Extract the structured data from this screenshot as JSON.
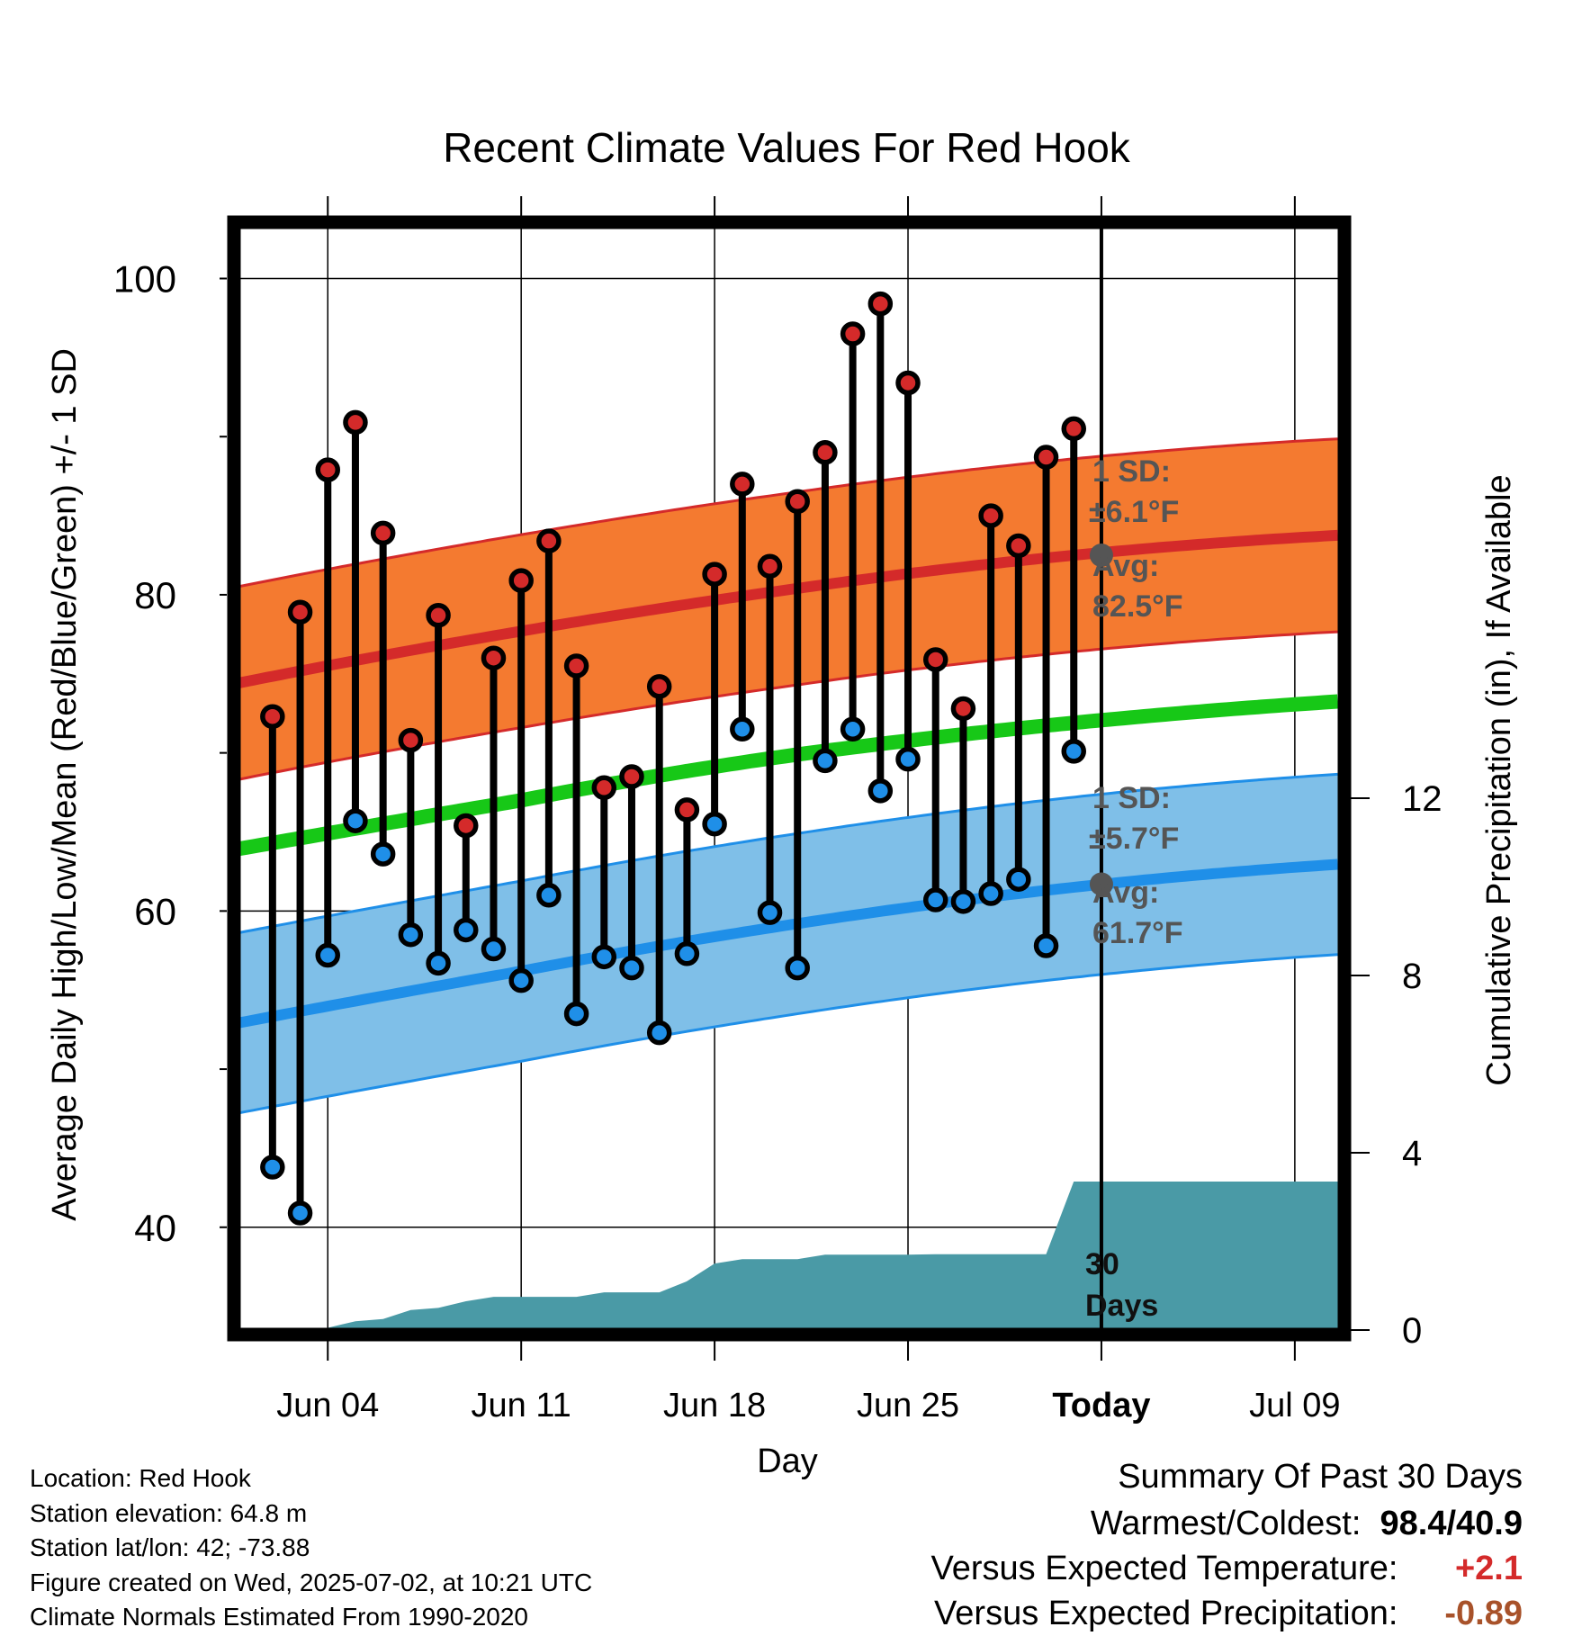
{
  "chart_data": {
    "type": "line",
    "title": "Recent Climate Values For Red Hook",
    "xlabel": "Day",
    "ylabel": "Average Daily High/Low/Mean (Red/Blue/Green) +/- 1 SD",
    "y2label": "Cumulative Precipitation (in), If Available",
    "ylim": [
      33.5,
      103.5
    ],
    "y2lim": [
      0,
      18
    ],
    "yticks": [
      40,
      60,
      80,
      100
    ],
    "y2ticks": [
      0,
      4,
      8,
      12
    ],
    "x_axis": {
      "start_date": "2025-06-01",
      "day_range": [
        0.8,
        40.6
      ],
      "tick_labels": [
        {
          "label": "Jun 04",
          "date": "2025-06-04"
        },
        {
          "label": "Jun 11",
          "date": "2025-06-11"
        },
        {
          "label": "Jun 18",
          "date": "2025-06-18"
        },
        {
          "label": "Jun 25",
          "date": "2025-06-25"
        },
        {
          "label": "Today",
          "date": "2025-07-02"
        },
        {
          "label": "Jul 09",
          "date": "2025-07-09"
        }
      ]
    },
    "grid": true,
    "series": [
      {
        "name": "High",
        "color": "#d42a2a",
        "x": [
          "2025-06-02",
          "2025-06-03",
          "2025-06-04",
          "2025-06-05",
          "2025-06-06",
          "2025-06-07",
          "2025-06-08",
          "2025-06-09",
          "2025-06-10",
          "2025-06-11",
          "2025-06-12",
          "2025-06-13",
          "2025-06-14",
          "2025-06-15",
          "2025-06-16",
          "2025-06-17",
          "2025-06-18",
          "2025-06-19",
          "2025-06-20",
          "2025-06-21",
          "2025-06-22",
          "2025-06-23",
          "2025-06-24",
          "2025-06-25",
          "2025-06-26",
          "2025-06-27",
          "2025-06-28",
          "2025-06-29",
          "2025-06-30",
          "2025-07-01"
        ],
        "values": [
          72.3,
          78.9,
          87.9,
          90.9,
          83.9,
          70.8,
          78.7,
          65.4,
          76.0,
          80.9,
          83.4,
          75.5,
          67.8,
          68.5,
          74.2,
          66.4,
          81.3,
          87.0,
          81.8,
          85.9,
          89.0,
          96.5,
          98.4,
          93.4,
          75.9,
          72.8,
          85.0,
          83.1,
          88.7,
          90.5
        ]
      },
      {
        "name": "Low",
        "color": "#1f8fe8",
        "x": [
          "2025-06-02",
          "2025-06-03",
          "2025-06-04",
          "2025-06-05",
          "2025-06-06",
          "2025-06-07",
          "2025-06-08",
          "2025-06-09",
          "2025-06-10",
          "2025-06-11",
          "2025-06-12",
          "2025-06-13",
          "2025-06-14",
          "2025-06-15",
          "2025-06-16",
          "2025-06-17",
          "2025-06-18",
          "2025-06-19",
          "2025-06-20",
          "2025-06-21",
          "2025-06-22",
          "2025-06-23",
          "2025-06-24",
          "2025-06-25",
          "2025-06-26",
          "2025-06-27",
          "2025-06-28",
          "2025-06-29",
          "2025-06-30",
          "2025-07-01"
        ],
        "values": [
          43.8,
          40.9,
          57.2,
          65.7,
          63.6,
          58.5,
          56.7,
          58.8,
          57.6,
          55.6,
          61.0,
          53.5,
          57.1,
          56.4,
          52.3,
          57.3,
          65.5,
          71.5,
          59.9,
          56.4,
          69.5,
          71.5,
          67.6,
          69.6,
          60.7,
          60.6,
          61.1,
          62.0,
          57.8,
          70.1
        ]
      },
      {
        "name": "Normal High",
        "color": "#d42a2a",
        "x": [
          "2025-06-01",
          "2025-06-11",
          "2025-06-21",
          "2025-07-01",
          "2025-07-11"
        ],
        "values": [
          74.5,
          77.7,
          80.4,
          82.5,
          83.8
        ],
        "band": "+/- 6.1"
      },
      {
        "name": "Normal Low",
        "color": "#1f8fe8",
        "x": [
          "2025-06-01",
          "2025-06-11",
          "2025-06-21",
          "2025-07-01",
          "2025-07-11"
        ],
        "values": [
          53.0,
          56.2,
          59.2,
          61.5,
          63.0
        ],
        "band": "+/- 5.7"
      },
      {
        "name": "Normal Mean",
        "color": "#17c817",
        "x": [
          "2025-06-01",
          "2025-06-11",
          "2025-06-21",
          "2025-07-01",
          "2025-07-11"
        ],
        "values": [
          64.0,
          67.0,
          69.9,
          71.9,
          73.3
        ]
      },
      {
        "name": "Cumulative Precipitation",
        "color": "#4a9aa6",
        "axis": "right",
        "x": [
          "2025-06-04",
          "2025-06-05",
          "2025-06-06",
          "2025-06-07",
          "2025-06-08",
          "2025-06-09",
          "2025-06-10",
          "2025-06-11",
          "2025-06-12",
          "2025-06-13",
          "2025-06-14",
          "2025-06-15",
          "2025-06-16",
          "2025-06-17",
          "2025-06-18",
          "2025-06-19",
          "2025-06-20",
          "2025-06-21",
          "2025-06-22",
          "2025-06-23",
          "2025-06-24",
          "2025-06-25",
          "2025-06-26",
          "2025-06-27",
          "2025-06-28",
          "2025-06-29",
          "2025-06-30",
          "2025-07-01",
          "2025-07-11"
        ],
        "values": [
          0.05,
          0.2,
          0.25,
          0.45,
          0.5,
          0.65,
          0.75,
          0.75,
          0.75,
          0.75,
          0.85,
          0.85,
          0.85,
          1.1,
          1.5,
          1.6,
          1.6,
          1.6,
          1.7,
          1.7,
          1.7,
          1.7,
          1.71,
          1.71,
          1.71,
          1.71,
          1.71,
          3.35,
          3.35
        ]
      }
    ],
    "annotations": {
      "high_sd": {
        "line1": "1 SD:",
        "line2": "±6.1°F",
        "avg_label": "Avg:",
        "avg_value": "82.5°F",
        "today_value": 82.5
      },
      "low_sd": {
        "line1": "1 SD:",
        "line2": "±5.7°F",
        "avg_label": "Avg:",
        "avg_value": "61.7°F",
        "today_value": 61.7
      },
      "window": {
        "line1": "30",
        "line2": "Days"
      }
    }
  },
  "info": {
    "location": "Location: Red Hook",
    "elevation": "Station elevation: 64.8 m",
    "latlon": "Station lat/lon: 42; -73.88",
    "created": "Figure created on Wed, 2025-07-02, at 10:21 UTC",
    "normals": "Climate Normals Estimated From 1990-2020"
  },
  "summary": {
    "title": "Summary Of Past 30 Days",
    "warmest_coldest_label": "Warmest/Coldest:",
    "warmest_coldest_value": "98.4/40.9",
    "temp_label": "Versus Expected Temperature:",
    "temp_value": "+2.1",
    "temp_color": "#d42a2a",
    "precip_label": "Versus Expected Precipitation:",
    "precip_value": "-0.89",
    "precip_color": "#a8522a"
  }
}
